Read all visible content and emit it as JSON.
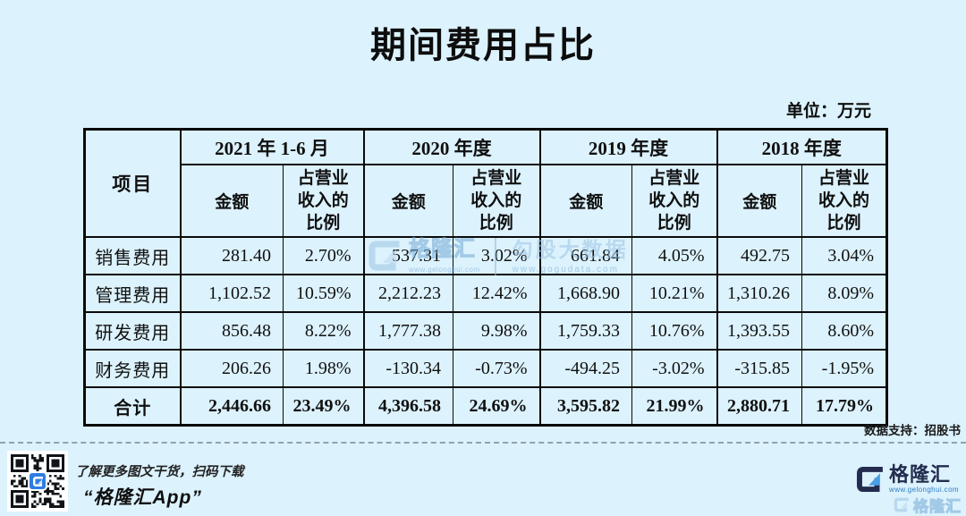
{
  "page": {
    "title": "期间费用占比",
    "unit_label": "单位：万元",
    "data_source_label": "数据支持：招股书"
  },
  "table": {
    "item_header": "项目",
    "amount_header": "金额",
    "ratio_header": "占营业收入的比例",
    "year_groups": [
      "2021 年 1-6 月",
      "2020 年度",
      "2019 年度",
      "2018 年度"
    ],
    "rows": [
      {
        "label": "销售费用",
        "values": [
          "281.40",
          "2.70%",
          "537.31",
          "3.02%",
          "661.84",
          "4.05%",
          "492.75",
          "3.04%"
        ]
      },
      {
        "label": "管理费用",
        "values": [
          "1,102.52",
          "10.59%",
          "2,212.23",
          "12.42%",
          "1,668.90",
          "10.21%",
          "1,310.26",
          "8.09%"
        ]
      },
      {
        "label": "研发费用",
        "values": [
          "856.48",
          "8.22%",
          "1,777.38",
          "9.98%",
          "1,759.33",
          "10.76%",
          "1,393.55",
          "8.60%"
        ]
      },
      {
        "label": "财务费用",
        "values": [
          "206.26",
          "1.98%",
          "-130.34",
          "-0.73%",
          "-494.25",
          "-3.02%",
          "-315.85",
          "-1.95%"
        ]
      },
      {
        "label": "合计",
        "values": [
          "2,446.66",
          "23.49%",
          "4,396.58",
          "24.69%",
          "3,595.82",
          "21.99%",
          "2,880.71",
          "17.79%"
        ]
      }
    ]
  },
  "watermark": {
    "gelonghui_name": "格隆汇",
    "gelonghui_url": "www.gelonghui.com",
    "gogu_name": "勾股大数据",
    "gogu_url": "www.gogudata.com"
  },
  "footer": {
    "promo_line1": "了解更多图文干货，扫码下载",
    "promo_line2": "“格隆汇App”",
    "brand_name": "格隆汇",
    "brand_url": "www.gelonghui.com",
    "brand_watermark_name": "格隆汇"
  },
  "colors": {
    "background": "#dcf2fd",
    "table_border": "#0a0a0a",
    "brand_navy": "#232c4e",
    "brand_accent_blue": "#4a9ee8",
    "watermark_blue": "#9cc4e2",
    "url_blue": "#2f7cc4"
  },
  "chart_data": {
    "type": "table",
    "title": "期间费用占比",
    "unit": "万元",
    "source": "招股书",
    "column_groups": [
      "2021 年 1-6 月",
      "2020 年度",
      "2019 年度",
      "2018 年度"
    ],
    "sub_columns": [
      "金额",
      "占营业收入的比例"
    ],
    "row_labels": [
      "销售费用",
      "管理费用",
      "研发费用",
      "财务费用",
      "合计"
    ],
    "values": [
      [
        281.4,
        "2.70%",
        537.31,
        "3.02%",
        661.84,
        "4.05%",
        492.75,
        "3.04%"
      ],
      [
        1102.52,
        "10.59%",
        2212.23,
        "12.42%",
        1668.9,
        "10.21%",
        1310.26,
        "8.09%"
      ],
      [
        856.48,
        "8.22%",
        1777.38,
        "9.98%",
        1759.33,
        "10.76%",
        1393.55,
        "8.60%"
      ],
      [
        206.26,
        "1.98%",
        -130.34,
        "-0.73%",
        -494.25,
        "-3.02%",
        -315.85,
        "-1.95%"
      ],
      [
        2446.66,
        "23.49%",
        4396.58,
        "24.69%",
        3595.82,
        "21.99%",
        2880.71,
        "17.79%"
      ]
    ]
  }
}
